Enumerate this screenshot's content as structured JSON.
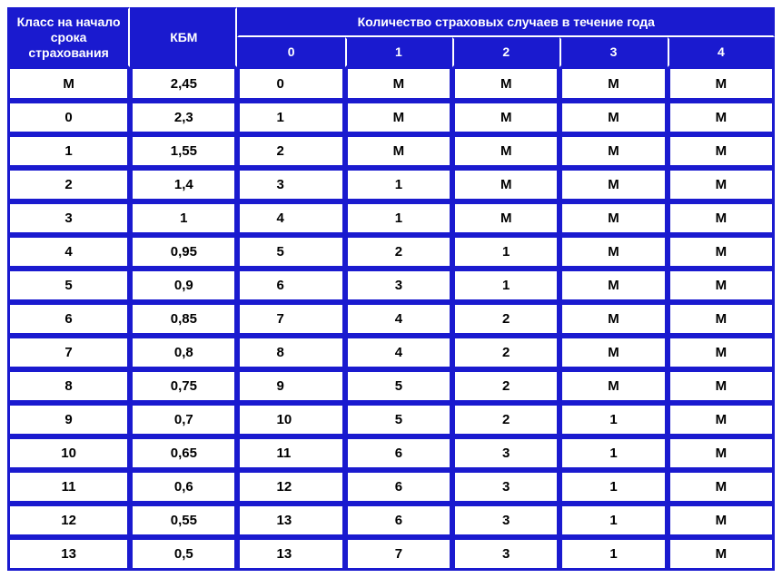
{
  "colors": {
    "header_bg": "#1a1acf",
    "header_fg": "#ffffff",
    "border": "#1a1acf",
    "cell_bg": "#ffffff",
    "cell_fg": "#000000"
  },
  "table": {
    "type": "table",
    "header": {
      "class_col": "Класс на начало срока страхования",
      "kbm_col": "КБМ",
      "cases_span": "Количество страховых случаев в течение года",
      "case_labels": [
        "0",
        "1",
        "2",
        "3",
        "4"
      ]
    },
    "rows": [
      {
        "class": "М",
        "kbm": "2,45",
        "cases": [
          "0",
          "М",
          "М",
          "М",
          "М"
        ]
      },
      {
        "class": "0",
        "kbm": "2,3",
        "cases": [
          "1",
          "М",
          "М",
          "М",
          "М"
        ]
      },
      {
        "class": "1",
        "kbm": "1,55",
        "cases": [
          "2",
          "М",
          "М",
          "М",
          "М"
        ]
      },
      {
        "class": "2",
        "kbm": "1,4",
        "cases": [
          "3",
          "1",
          "М",
          "М",
          "М"
        ]
      },
      {
        "class": "3",
        "kbm": "1",
        "cases": [
          "4",
          "1",
          "М",
          "М",
          "М"
        ]
      },
      {
        "class": "4",
        "kbm": "0,95",
        "cases": [
          "5",
          "2",
          "1",
          "М",
          "М"
        ]
      },
      {
        "class": "5",
        "kbm": "0,9",
        "cases": [
          "6",
          "3",
          "1",
          "М",
          "М"
        ]
      },
      {
        "class": "6",
        "kbm": "0,85",
        "cases": [
          "7",
          "4",
          "2",
          "М",
          "М"
        ]
      },
      {
        "class": "7",
        "kbm": "0,8",
        "cases": [
          "8",
          "4",
          "2",
          "М",
          "М"
        ]
      },
      {
        "class": "8",
        "kbm": "0,75",
        "cases": [
          "9",
          "5",
          "2",
          "М",
          "М"
        ]
      },
      {
        "class": "9",
        "kbm": "0,7",
        "cases": [
          "10",
          "5",
          "2",
          "1",
          "М"
        ]
      },
      {
        "class": "10",
        "kbm": "0,65",
        "cases": [
          "11",
          "6",
          "3",
          "1",
          "М"
        ]
      },
      {
        "class": "11",
        "kbm": "0,6",
        "cases": [
          "12",
          "6",
          "3",
          "1",
          "М"
        ]
      },
      {
        "class": "12",
        "kbm": "0,55",
        "cases": [
          "13",
          "6",
          "3",
          "1",
          "М"
        ]
      },
      {
        "class": "13",
        "kbm": "0,5",
        "cases": [
          "13",
          "7",
          "3",
          "1",
          "М"
        ]
      }
    ]
  }
}
